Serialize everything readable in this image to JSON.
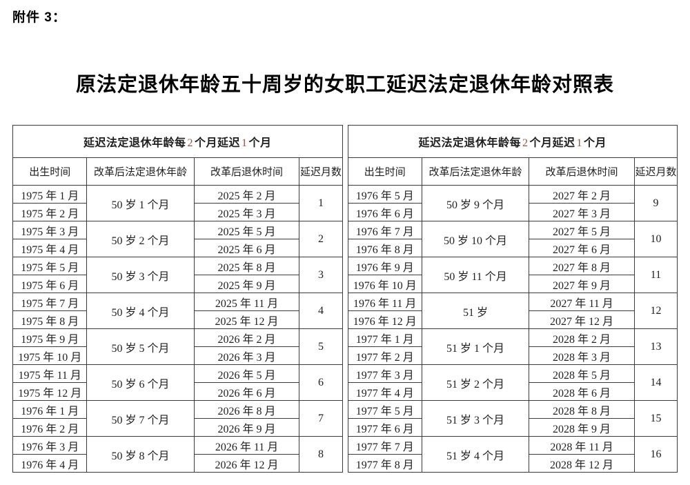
{
  "page": {
    "attachment_label": "附件 3：",
    "title": "原法定退休年龄五十周岁的女职工延迟法定退休年龄对照表"
  },
  "colors": {
    "header_digit_accent": "#8f5549",
    "text": "#1f1f1f",
    "border": "#3a3a3a",
    "background": "#ffffff"
  },
  "table": {
    "group_header": {
      "prefix": "延迟法定退休年龄每",
      "num1": "2",
      "mid": "个月延迟",
      "num2": "1",
      "suffix": "个月"
    },
    "columns": [
      "出生时间",
      "改革后法定退休年龄",
      "改革后退休时间",
      "延迟月数"
    ],
    "left_rows": [
      {
        "birth": [
          "1975 年 1 月",
          "1975 年 2 月"
        ],
        "age": "50 岁 1 个月",
        "retire": [
          "2025 年 2 月",
          "2025 年 3 月"
        ],
        "delay": "1"
      },
      {
        "birth": [
          "1975 年 3 月",
          "1975 年 4 月"
        ],
        "age": "50 岁 2 个月",
        "retire": [
          "2025 年 5 月",
          "2025 年 6 月"
        ],
        "delay": "2"
      },
      {
        "birth": [
          "1975 年 5 月",
          "1975 年 6 月"
        ],
        "age": "50 岁 3 个月",
        "retire": [
          "2025 年 8 月",
          "2025 年 9 月"
        ],
        "delay": "3"
      },
      {
        "birth": [
          "1975 年 7 月",
          "1975 年 8 月"
        ],
        "age": "50 岁 4 个月",
        "retire": [
          "2025 年 11 月",
          "2025 年 12 月"
        ],
        "delay": "4"
      },
      {
        "birth": [
          "1975 年 9 月",
          "1975 年 10 月"
        ],
        "age": "50 岁 5 个月",
        "retire": [
          "2026 年 2 月",
          "2026 年 3 月"
        ],
        "delay": "5"
      },
      {
        "birth": [
          "1975 年 11 月",
          "1975 年 12 月"
        ],
        "age": "50 岁 6 个月",
        "retire": [
          "2026 年 5 月",
          "2026 年 6 月"
        ],
        "delay": "6"
      },
      {
        "birth": [
          "1976 年 1 月",
          "1976 年 2 月"
        ],
        "age": "50 岁 7 个月",
        "retire": [
          "2026 年 8 月",
          "2026 年 9 月"
        ],
        "delay": "7"
      },
      {
        "birth": [
          "1976 年 3 月",
          "1976 年 4 月"
        ],
        "age": "50 岁 8 个月",
        "retire": [
          "2026 年 11 月",
          "2026 年 12 月"
        ],
        "delay": "8"
      }
    ],
    "right_rows": [
      {
        "birth": [
          "1976 年 5 月",
          "1976 年 6 月"
        ],
        "age": "50 岁 9 个月",
        "retire": [
          "2027 年 2 月",
          "2027 年 3 月"
        ],
        "delay": "9"
      },
      {
        "birth": [
          "1976 年 7 月",
          "1976 年 8 月"
        ],
        "age": "50 岁 10 个月",
        "retire": [
          "2027 年 5 月",
          "2027 年 6 月"
        ],
        "delay": "10"
      },
      {
        "birth": [
          "1976 年 9 月",
          "1976 年 10 月"
        ],
        "age": "50 岁 11 个月",
        "retire": [
          "2027 年 8 月",
          "2027 年 9 月"
        ],
        "delay": "11"
      },
      {
        "birth": [
          "1976 年 11 月",
          "1976 年 12 月"
        ],
        "age": "51 岁",
        "retire": [
          "2027 年 11 月",
          "2027 年 12 月"
        ],
        "delay": "12"
      },
      {
        "birth": [
          "1977 年 1 月",
          "1977 年 2 月"
        ],
        "age": "51 岁 1 个月",
        "retire": [
          "2028 年 2 月",
          "2028 年 3 月"
        ],
        "delay": "13"
      },
      {
        "birth": [
          "1977 年 3 月",
          "1977 年 4 月"
        ],
        "age": "51 岁 2 个月",
        "retire": [
          "2028 年 5 月",
          "2028 年 6 月"
        ],
        "delay": "14"
      },
      {
        "birth": [
          "1977 年 5 月",
          "1977 年 6 月"
        ],
        "age": "51 岁 3 个月",
        "retire": [
          "2028 年 8 月",
          "2028 年 9 月"
        ],
        "delay": "15"
      },
      {
        "birth": [
          "1977 年 7 月",
          "1977 年 8 月"
        ],
        "age": "51 岁 4 个月",
        "retire": [
          "2028 年 11 月",
          "2028 年 12 月"
        ],
        "delay": "16"
      }
    ]
  }
}
